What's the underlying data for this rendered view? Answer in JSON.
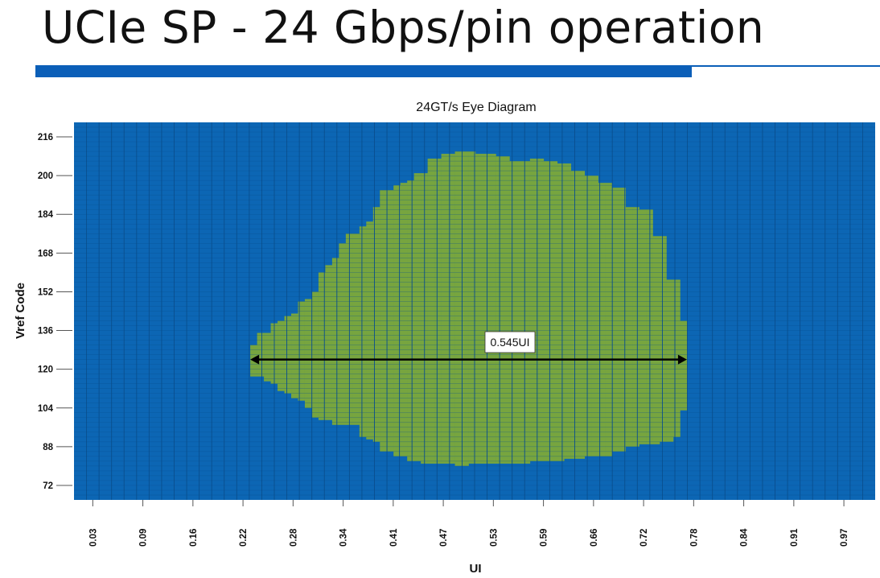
{
  "slide": {
    "title": "UCIe SP - 24 Gbps/pin operation"
  },
  "chart_data": {
    "type": "heatmap",
    "title": "24GT/s Eye Diagram",
    "xlabel": "UI",
    "ylabel": "Vref Code",
    "x_tick_labels": [
      "0.03",
      "0.09",
      "0.16",
      "0.22",
      "0.28",
      "0.34",
      "0.41",
      "0.47",
      "0.53",
      "0.59",
      "0.66",
      "0.72",
      "0.78",
      "0.84",
      "0.91",
      "0.97"
    ],
    "y_tick_labels": [
      "216",
      "200",
      "184",
      "168",
      "152",
      "136",
      "120",
      "104",
      "88",
      "72"
    ],
    "x_cols": 64,
    "y_range": [
      66,
      222
    ],
    "grid": true,
    "colors": {
      "closed": "#0c66b4",
      "open": "#77a53f",
      "grid": "#0a4f8e",
      "grid_open": "#5a8a2a"
    },
    "eye_open": {
      "x_ui_start": 0.22,
      "x_ui_end": 0.765,
      "top_vref": [
        130,
        135,
        135,
        139,
        140,
        142,
        143,
        148,
        149,
        152,
        160,
        163,
        166,
        172,
        176,
        176,
        179,
        181,
        187,
        194,
        194,
        196,
        197,
        198,
        201,
        201,
        207,
        207,
        209,
        209,
        210,
        210,
        210,
        209,
        209,
        209,
        208,
        208,
        206,
        206,
        206,
        207,
        207,
        206,
        206,
        205,
        205,
        202,
        202,
        200,
        200,
        197,
        197,
        195,
        195,
        187,
        187,
        186,
        186,
        175,
        175,
        157,
        157,
        140
      ],
      "bottom_vref": [
        117,
        117,
        115,
        114,
        111,
        110,
        108,
        107,
        104,
        100,
        99,
        99,
        97,
        97,
        97,
        97,
        92,
        91,
        90,
        86,
        86,
        84,
        84,
        82,
        82,
        81,
        81,
        81,
        81,
        81,
        80,
        80,
        81,
        81,
        81,
        81,
        81,
        81,
        81,
        81,
        81,
        82,
        82,
        82,
        82,
        82,
        83,
        83,
        83,
        84,
        84,
        84,
        84,
        86,
        86,
        88,
        88,
        89,
        89,
        89,
        90,
        90,
        92,
        103
      ]
    },
    "annotation": {
      "label": "0.545UI",
      "vref": 124,
      "x_from": 0.22,
      "x_to": 0.765
    }
  }
}
